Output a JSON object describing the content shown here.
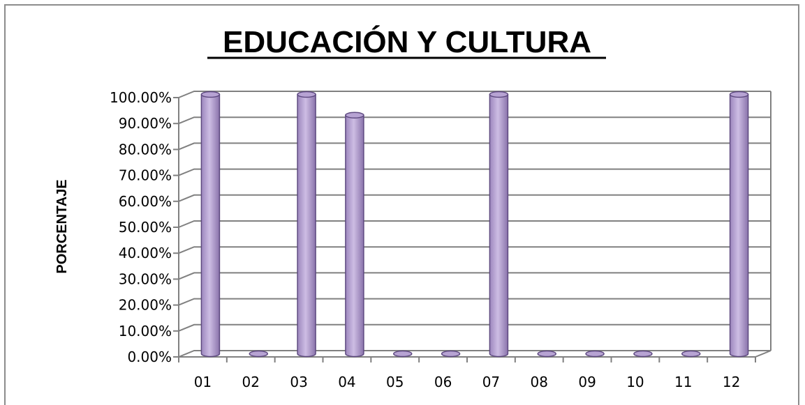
{
  "chart_data": {
    "type": "bar",
    "title": "EDUCACIÓN Y CULTURA",
    "xlabel": "",
    "ylabel": "PORCENTAJE",
    "categories": [
      "01",
      "02",
      "03",
      "04",
      "05",
      "06",
      "07",
      "08",
      "09",
      "10",
      "11",
      "12"
    ],
    "values": [
      100,
      0,
      100,
      92,
      0,
      0,
      100,
      0,
      0,
      0,
      0,
      100
    ],
    "y_ticks": [
      "0.00%",
      "10.00%",
      "20.00%",
      "30.00%",
      "40.00%",
      "50.00%",
      "60.00%",
      "70.00%",
      "80.00%",
      "90.00%",
      "100.00%"
    ],
    "ylim": [
      0,
      100
    ],
    "grid": true,
    "legend": "none",
    "bar_color": "#b7a3d3",
    "bar_edge_color": "#5e4a80",
    "grid_color": "#808080"
  }
}
